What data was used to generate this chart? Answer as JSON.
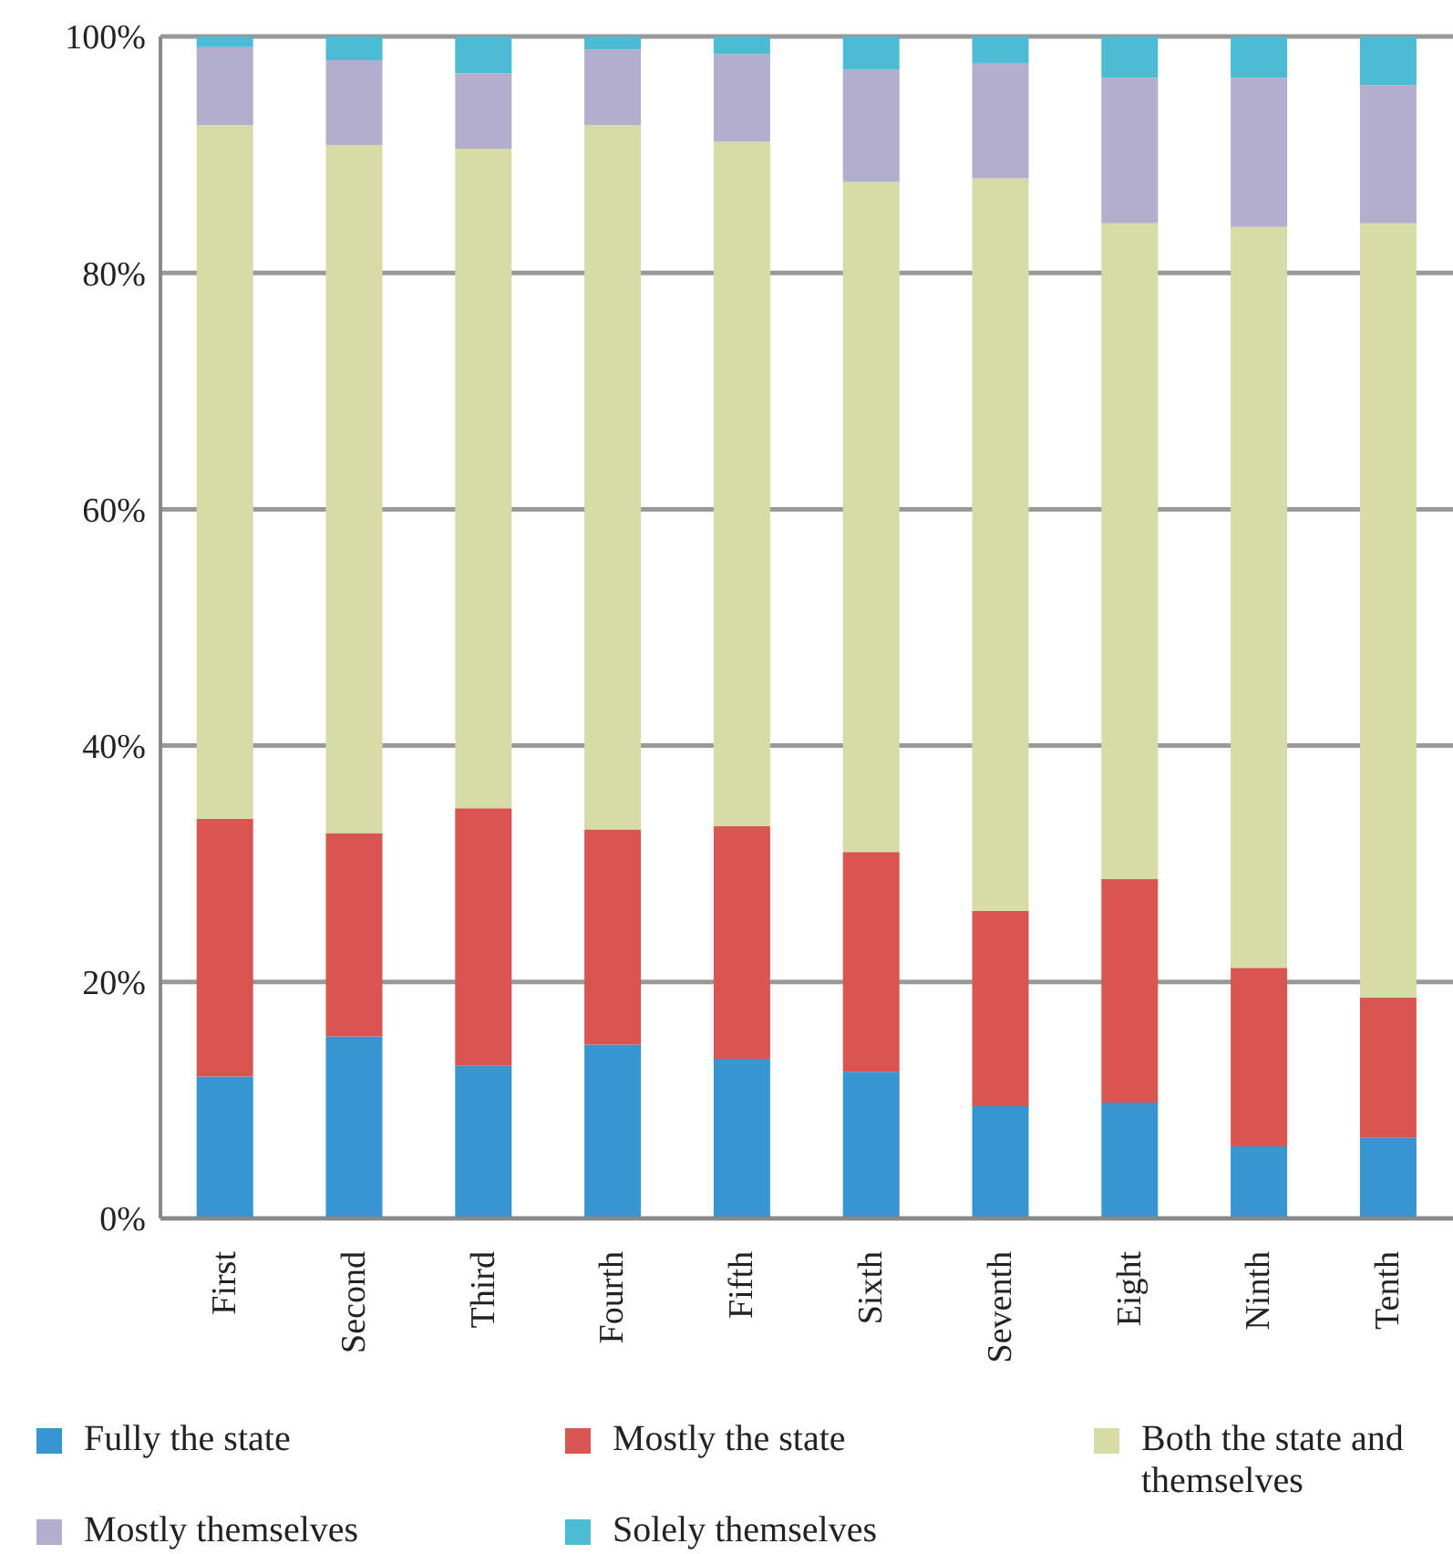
{
  "chart_data": {
    "type": "bar",
    "stacked": true,
    "categories": [
      "First",
      "Second",
      "Third",
      "Fourth",
      "Fifth",
      "Sixth",
      "Seventh",
      "Eight",
      "Ninth",
      "Tenth"
    ],
    "series": [
      {
        "name": "Fully the state",
        "color": "#3795d0",
        "values": [
          12.0,
          15.4,
          12.9,
          14.7,
          13.5,
          12.4,
          9.5,
          9.8,
          6.1,
          6.8
        ]
      },
      {
        "name": "Mostly the state",
        "color": "#d95550",
        "values": [
          21.8,
          17.2,
          21.8,
          18.2,
          19.7,
          18.6,
          16.5,
          18.9,
          15.1,
          11.9
        ]
      },
      {
        "name": "Both the state and themselves",
        "color": "#d7dca6",
        "values": [
          58.7,
          58.2,
          55.8,
          59.6,
          57.9,
          56.7,
          62.0,
          55.5,
          62.7,
          65.5
        ]
      },
      {
        "name": "Mostly themselves",
        "color": "#b3aecd",
        "values": [
          6.6,
          7.2,
          6.4,
          6.4,
          7.4,
          9.5,
          9.7,
          12.3,
          12.6,
          11.7
        ]
      },
      {
        "name": "Solely themselves",
        "color": "#4dbbd3",
        "values": [
          0.9,
          2.0,
          3.1,
          1.1,
          1.5,
          2.8,
          2.3,
          3.5,
          3.5,
          4.1
        ]
      }
    ],
    "ylim": [
      0,
      100
    ],
    "yticks": [
      {
        "value": 0,
        "label": "0%"
      },
      {
        "value": 20,
        "label": "20%"
      },
      {
        "value": 40,
        "label": "40%"
      },
      {
        "value": 60,
        "label": "60%"
      },
      {
        "value": 80,
        "label": "80%"
      },
      {
        "value": 100,
        "label": "100%"
      }
    ],
    "grid": "y",
    "legend": "bottom"
  }
}
